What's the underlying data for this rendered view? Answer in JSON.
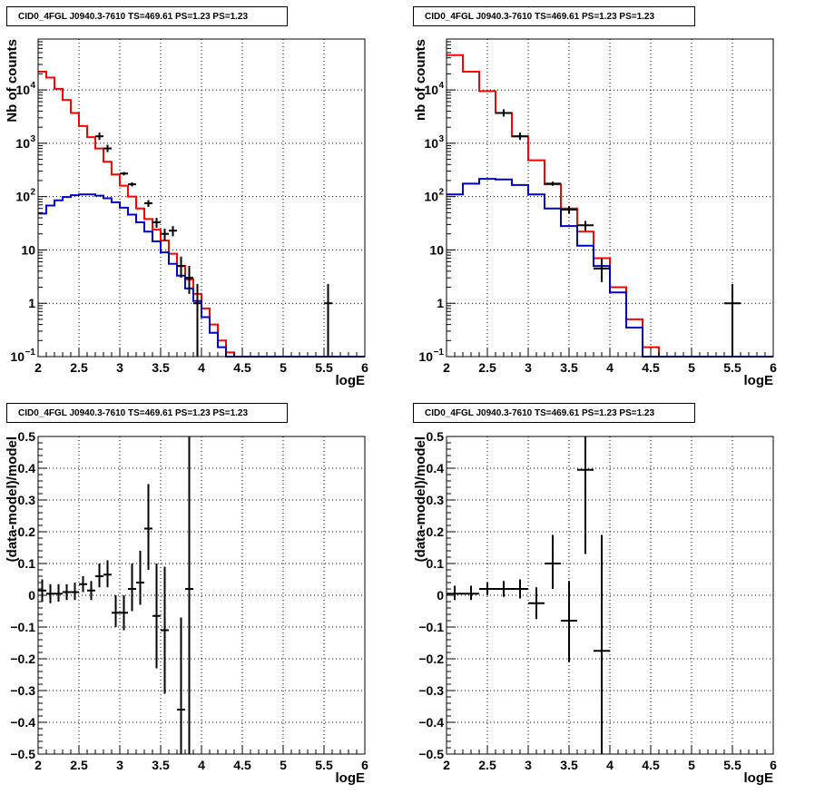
{
  "panels": [
    {
      "title": "CID0_4FGL J0940.3-7610 TS=469.61 PS=1.23 PS=1.23"
    },
    {
      "title": "CID0_4FGL J0940.3-7610 TS=469.61 PS=1.23 PS=1.23"
    },
    {
      "title": "CID0_4FGL J0940.3-7610 TS=469.61 PS=1.23 PS=1.23"
    },
    {
      "title": "CID0_4FGL J0940.3-7610 TS=469.61 PS=1.23 PS=1.23"
    }
  ],
  "colors": {
    "data": "#000000",
    "total_model": "#ff0000",
    "component_model": "#0000cc",
    "grid": "#000000"
  },
  "chart_data": [
    {
      "type": "line",
      "scale_y": "log",
      "title": "CID0_4FGL J0940.3-7610 TS=469.61 PS=1.23 PS=1.23",
      "xlabel": "logE",
      "ylabel": "Nb of counts",
      "xlim": [
        2,
        6
      ],
      "ylim": [
        0.1,
        90000
      ],
      "grid": true,
      "xticks": [
        "2",
        "2.5",
        "3",
        "3.5",
        "4",
        "4.5",
        "5",
        "5.5",
        "6"
      ],
      "yticks": [
        {
          "v": 0.1,
          "label": "10",
          "sup": "−1"
        },
        {
          "v": 1,
          "label": "1"
        },
        {
          "v": 10,
          "label": "10"
        },
        {
          "v": 100,
          "label": "10",
          "sup": "2"
        },
        {
          "v": 1000,
          "label": "10",
          "sup": "3"
        },
        {
          "v": 10000,
          "label": "10",
          "sup": "4"
        }
      ],
      "bin_edges": [
        2.0,
        2.1,
        2.2,
        2.3,
        2.4,
        2.5,
        2.6,
        2.7,
        2.8,
        2.9,
        3.0,
        3.1,
        3.2,
        3.3,
        3.4,
        3.5,
        3.6,
        3.7,
        3.8,
        3.9,
        4.0,
        4.1,
        4.2,
        4.3,
        4.4,
        4.5,
        4.6,
        4.7,
        4.8,
        4.9,
        5.0,
        5.1,
        5.2,
        5.3,
        5.4,
        5.5,
        5.6,
        5.7,
        5.8,
        5.9,
        6.0
      ],
      "series": [
        {
          "role": "total_model",
          "values": [
            22000,
            17000,
            10500,
            6500,
            3700,
            2100,
            1300,
            800,
            450,
            260,
            160,
            100,
            60,
            38,
            24,
            15,
            8.5,
            5,
            2.8,
            1.5,
            0.8,
            0.4,
            0.2,
            0.12,
            0.1,
            0.1,
            0.1,
            0.1,
            0.1,
            0.1,
            0.1,
            0.1,
            0.1,
            0.1,
            0.1,
            0.1,
            0.1,
            0.1,
            0.1,
            0.1
          ]
        },
        {
          "role": "component_model",
          "values": [
            48,
            68,
            85,
            98,
            106,
            110,
            110,
            104,
            93,
            78,
            62,
            46,
            33,
            22,
            14.5,
            9,
            5.5,
            3.3,
            1.9,
            1.1,
            0.55,
            0.28,
            0.15,
            0.1,
            0.1,
            0.1,
            0.1,
            0.1,
            0.1,
            0.1,
            0.1,
            0.1,
            0.1,
            0.1,
            0.1,
            0.1,
            0.1,
            0.1,
            0.1,
            0.1
          ]
        },
        {
          "role": "data",
          "points": [
            {
              "x": 2.75,
              "y": 1350
            },
            {
              "x": 2.85,
              "y": 800
            },
            {
              "x": 3.05,
              "y": 270,
              "ylo": 250,
              "yhi": 290
            },
            {
              "x": 3.15,
              "y": 170,
              "ylo": 155,
              "yhi": 185
            },
            {
              "x": 3.35,
              "y": 75,
              "ylo": 64,
              "yhi": 86
            },
            {
              "x": 3.45,
              "y": 33,
              "ylo": 26,
              "yhi": 40
            },
            {
              "x": 3.55,
              "y": 20,
              "ylo": 15,
              "yhi": 25
            },
            {
              "x": 3.65,
              "y": 23,
              "ylo": 18,
              "yhi": 28
            },
            {
              "x": 3.75,
              "y": 5,
              "ylo": 3,
              "yhi": 7.5
            },
            {
              "x": 3.85,
              "y": 3,
              "ylo": 1.5,
              "yhi": 5
            },
            {
              "x": 3.95,
              "y": 1,
              "ylo": 0.1,
              "yhi": 2.3
            },
            {
              "x": 5.55,
              "y": 1,
              "ylo": 0.1,
              "yhi": 2.3
            }
          ]
        }
      ]
    },
    {
      "type": "line",
      "scale_y": "log",
      "title": "CID0_4FGL J0940.3-7610 TS=469.61 PS=1.23 PS=1.23",
      "xlabel": "logE",
      "ylabel": "nb of counts",
      "xlim": [
        2,
        6
      ],
      "ylim": [
        0.1,
        90000
      ],
      "grid": true,
      "xticks": [
        "2",
        "2.5",
        "3",
        "3.5",
        "4",
        "4.5",
        "5",
        "5.5",
        "6"
      ],
      "yticks": [
        {
          "v": 0.1,
          "label": "10",
          "sup": "−1"
        },
        {
          "v": 1,
          "label": "1"
        },
        {
          "v": 10,
          "label": "10"
        },
        {
          "v": 100,
          "label": "10",
          "sup": "2"
        },
        {
          "v": 1000,
          "label": "10",
          "sup": "3"
        },
        {
          "v": 10000,
          "label": "10",
          "sup": "4"
        }
      ],
      "bin_edges": [
        2.0,
        2.2,
        2.4,
        2.6,
        2.8,
        3.0,
        3.2,
        3.4,
        3.6,
        3.8,
        4.0,
        4.2,
        4.4,
        4.6,
        4.8,
        5.0,
        5.2,
        5.4,
        5.6,
        5.8,
        6.0
      ],
      "series": [
        {
          "role": "total_model",
          "values": [
            45000,
            22000,
            9500,
            3700,
            1350,
            480,
            170,
            60,
            22,
            7,
            2,
            0.5,
            0.15,
            0.1,
            0.1,
            0.1,
            0.1,
            0.1,
            0.1,
            0.1
          ]
        },
        {
          "role": "component_model",
          "values": [
            110,
            175,
            215,
            210,
            165,
            110,
            60,
            28,
            12,
            5,
            1.6,
            0.35,
            0.1,
            0.1,
            0.1,
            0.1,
            0.1,
            0.1,
            0.1,
            0.1
          ]
        },
        {
          "role": "data",
          "points": [
            {
              "x": 2.7,
              "y": 3700
            },
            {
              "x": 2.9,
              "y": 1350
            },
            {
              "x": 3.3,
              "y": 175,
              "ylo": 160,
              "yhi": 190
            },
            {
              "x": 3.5,
              "y": 57,
              "ylo": 48,
              "yhi": 66
            },
            {
              "x": 3.7,
              "y": 29,
              "ylo": 23,
              "yhi": 35
            },
            {
              "x": 3.9,
              "y": 4.5,
              "ylo": 2.5,
              "yhi": 7
            },
            {
              "x": 5.5,
              "y": 1,
              "ylo": 0.1,
              "yhi": 2.3
            }
          ]
        }
      ]
    },
    {
      "type": "scatter",
      "scale_y": "linear",
      "title": "CID0_4FGL J0940.3-7610 TS=469.61 PS=1.23 PS=1.23",
      "xlabel": "logE",
      "ylabel": "(data-model)/model",
      "xlim": [
        2,
        6
      ],
      "ylim": [
        -0.5,
        0.5
      ],
      "grid": true,
      "xticks": [
        "2",
        "2.5",
        "3",
        "3.5",
        "4",
        "4.5",
        "5",
        "5.5",
        "6"
      ],
      "yticks": [
        {
          "v": -0.5,
          "label": "−0.5"
        },
        {
          "v": -0.4,
          "label": "−0.4"
        },
        {
          "v": -0.3,
          "label": "−0.3"
        },
        {
          "v": -0.2,
          "label": "−0.2"
        },
        {
          "v": -0.1,
          "label": "−0.1"
        },
        {
          "v": 0,
          "label": "0"
        },
        {
          "v": 0.1,
          "label": "0.1"
        },
        {
          "v": 0.2,
          "label": "0.2"
        },
        {
          "v": 0.3,
          "label": "0.3"
        },
        {
          "v": 0.4,
          "label": "0.4"
        },
        {
          "v": 0.5,
          "label": "0.5"
        }
      ],
      "half_width": 0.05,
      "series": [
        {
          "role": "data",
          "points": [
            {
              "x": 2.05,
              "y": 0.015,
              "ylo": -0.02,
              "yhi": 0.05
            },
            {
              "x": 2.15,
              "y": 0.005,
              "ylo": -0.025,
              "yhi": 0.035
            },
            {
              "x": 2.25,
              "y": 0.005,
              "ylo": -0.02,
              "yhi": 0.035
            },
            {
              "x": 2.35,
              "y": 0.01,
              "ylo": -0.015,
              "yhi": 0.035
            },
            {
              "x": 2.45,
              "y": 0.01,
              "ylo": -0.015,
              "yhi": 0.04
            },
            {
              "x": 2.55,
              "y": 0.035,
              "ylo": 0.01,
              "yhi": 0.06
            },
            {
              "x": 2.65,
              "y": 0.015,
              "ylo": -0.015,
              "yhi": 0.045
            },
            {
              "x": 2.75,
              "y": 0.06,
              "ylo": 0.025,
              "yhi": 0.1
            },
            {
              "x": 2.85,
              "y": 0.065,
              "ylo": 0.025,
              "yhi": 0.11
            },
            {
              "x": 2.95,
              "y": -0.055,
              "ylo": -0.1,
              "yhi": 0.0
            },
            {
              "x": 3.05,
              "y": -0.055,
              "ylo": -0.11,
              "yhi": 0.0
            },
            {
              "x": 3.15,
              "y": 0.02,
              "ylo": -0.05,
              "yhi": 0.1
            },
            {
              "x": 3.25,
              "y": 0.04,
              "ylo": -0.03,
              "yhi": 0.14
            },
            {
              "x": 3.35,
              "y": 0.21,
              "ylo": 0.08,
              "yhi": 0.35
            },
            {
              "x": 3.45,
              "y": -0.065,
              "ylo": -0.23,
              "yhi": 0.1
            },
            {
              "x": 3.55,
              "y": -0.11,
              "ylo": -0.31,
              "yhi": 0.09
            },
            {
              "x": 3.75,
              "y": -0.36,
              "ylo": -0.5,
              "yhi": -0.07
            },
            {
              "x": 3.85,
              "y": 0.02,
              "ylo": -0.5,
              "yhi": 0.5
            }
          ]
        }
      ]
    },
    {
      "type": "scatter",
      "scale_y": "linear",
      "title": "CID0_4FGL J0940.3-7610 TS=469.61 PS=1.23 PS=1.23",
      "xlabel": "logE",
      "ylabel": "(data-model)/model",
      "xlim": [
        2,
        6
      ],
      "ylim": [
        -0.5,
        0.5
      ],
      "grid": true,
      "xticks": [
        "2",
        "2.5",
        "3",
        "3.5",
        "4",
        "4.5",
        "5",
        "5.5",
        "6"
      ],
      "yticks": [
        {
          "v": -0.5,
          "label": "−0.5"
        },
        {
          "v": -0.4,
          "label": "−0.4"
        },
        {
          "v": -0.3,
          "label": "−0.3"
        },
        {
          "v": -0.2,
          "label": "−0.2"
        },
        {
          "v": -0.1,
          "label": "−0.1"
        },
        {
          "v": 0,
          "label": "0"
        },
        {
          "v": 0.1,
          "label": "0.1"
        },
        {
          "v": 0.2,
          "label": "0.2"
        },
        {
          "v": 0.3,
          "label": "0.3"
        },
        {
          "v": 0.4,
          "label": "0.4"
        },
        {
          "v": 0.5,
          "label": "0.5"
        }
      ],
      "half_width": 0.1,
      "series": [
        {
          "role": "data",
          "points": [
            {
              "x": 2.1,
              "y": 0.005,
              "ylo": -0.015,
              "yhi": 0.03
            },
            {
              "x": 2.3,
              "y": 0.005,
              "ylo": -0.015,
              "yhi": 0.03
            },
            {
              "x": 2.5,
              "y": 0.02,
              "ylo": 0.0,
              "yhi": 0.04
            },
            {
              "x": 2.7,
              "y": 0.02,
              "ylo": -0.005,
              "yhi": 0.045
            },
            {
              "x": 2.9,
              "y": 0.02,
              "ylo": -0.01,
              "yhi": 0.05
            },
            {
              "x": 3.1,
              "y": -0.025,
              "ylo": -0.075,
              "yhi": 0.025
            },
            {
              "x": 3.3,
              "y": 0.1,
              "ylo": 0.02,
              "yhi": 0.19
            },
            {
              "x": 3.5,
              "y": -0.08,
              "ylo": -0.21,
              "yhi": 0.045
            },
            {
              "x": 3.7,
              "y": 0.395,
              "ylo": 0.13,
              "yhi": 0.5
            },
            {
              "x": 3.9,
              "y": -0.175,
              "ylo": -0.5,
              "yhi": 0.19
            }
          ]
        }
      ]
    }
  ]
}
